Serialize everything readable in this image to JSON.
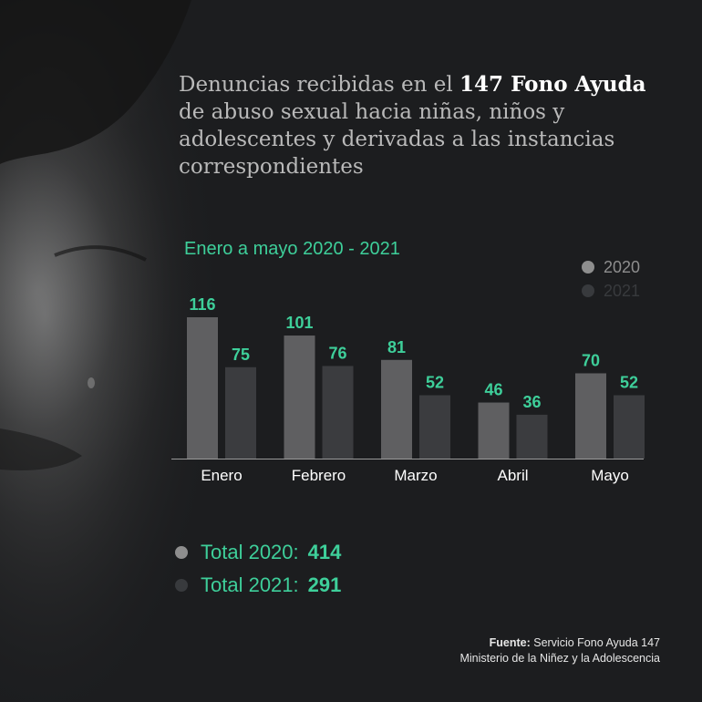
{
  "title": {
    "prefix": "Denuncias recibidas en el ",
    "highlight": "147 Fono Ayuda",
    "rest": " de abuso sexual hacia niñas, niños y adolescentes y derivadas a las instancias correspondientes"
  },
  "subtitle": "Enero a mayo 2020 - 2021",
  "legend": [
    {
      "label": "2020",
      "color": "#8e8e8e"
    },
    {
      "label": "2021",
      "color": "#383a3d"
    }
  ],
  "chart_data": {
    "type": "bar",
    "title": "Denuncias recibidas en el 147 Fono Ayuda de abuso sexual hacia niñas, niños y adolescentes y derivadas a las instancias correspondientes",
    "subtitle": "Enero a mayo 2020 - 2021",
    "categories": [
      "Enero",
      "Febrero",
      "Marzo",
      "Abril",
      "Mayo"
    ],
    "series": [
      {
        "name": "2020",
        "values": [
          116,
          101,
          81,
          46,
          70
        ],
        "color": "#5f5f61"
      },
      {
        "name": "2021",
        "values": [
          75,
          76,
          52,
          36,
          52
        ],
        "color": "#3b3c3f"
      }
    ],
    "label_color": "#3ecf9a",
    "ylim": [
      0,
      116
    ],
    "xlabel": "",
    "ylabel": ""
  },
  "totals": [
    {
      "label": "Total 2020:",
      "value": "414",
      "color": "#8e8e8e"
    },
    {
      "label": "Total 2021:",
      "value": "291",
      "color": "#383a3d"
    }
  ],
  "source": {
    "label": "Fuente:",
    "text": "Servicio Fono Ayuda 147",
    "line2": "Ministerio de la Niñez y la Adolescencia"
  }
}
